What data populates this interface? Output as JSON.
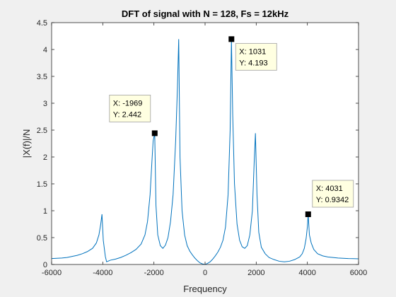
{
  "chart_data": {
    "type": "line",
    "title": "DFT of signal with N = 128, Fs = 12kHz",
    "xlabel": "Frequency",
    "ylabel": "|X(f)|/N",
    "xlim": [
      -6000,
      6000
    ],
    "ylim": [
      0,
      4.5
    ],
    "xticks": [
      -6000,
      -4000,
      -2000,
      0,
      2000,
      4000,
      6000
    ],
    "yticks": [
      0,
      0.5,
      1,
      1.5,
      2,
      2.5,
      3,
      3.5,
      4,
      4.5
    ],
    "xtick_labels": [
      "-6000",
      "-4000",
      "-2000",
      "0",
      "2000",
      "4000",
      "6000"
    ],
    "ytick_labels": [
      "0",
      "0.5",
      "1",
      "1.5",
      "2",
      "2.5",
      "3",
      "3.5",
      "4",
      "4.5"
    ],
    "grid": false,
    "line_color": "#0072bd",
    "series": [
      {
        "x": [
          -6000,
          -5800,
          -5600,
          -5400,
          -5200,
          -5000,
          -4800,
          -4600,
          -4400,
          -4250,
          -4150,
          -4080,
          -4031,
          -3980,
          -3900,
          -3850,
          -3700,
          -3500,
          -3300,
          -3100,
          -2900,
          -2700,
          -2500,
          -2350,
          -2250,
          -2150,
          -2080,
          -2030,
          -1969,
          -1920,
          -1850,
          -1750,
          -1650,
          -1550,
          -1450,
          -1350,
          -1250,
          -1150,
          -1080,
          -1031,
          -980,
          -900,
          -800,
          -700,
          -600,
          -500,
          -400,
          -300,
          -200,
          -100,
          0,
          100,
          200,
          300,
          400,
          500,
          600,
          700,
          800,
          900,
          980,
          1031,
          1080,
          1150,
          1250,
          1350,
          1450,
          1550,
          1650,
          1750,
          1850,
          1920,
          1969,
          2030,
          2100,
          2200,
          2350,
          2500,
          2700,
          2900,
          3100,
          3300,
          3500,
          3700,
          3800,
          3880,
          3950,
          4000,
          4031,
          4080,
          4150,
          4250,
          4400,
          4600,
          4800,
          5000,
          5200,
          5400,
          5600,
          5800,
          6000
        ],
        "y": [
          0.11,
          0.115,
          0.12,
          0.13,
          0.15,
          0.17,
          0.2,
          0.24,
          0.3,
          0.4,
          0.55,
          0.75,
          0.9342,
          0.45,
          0.15,
          0.05,
          0.08,
          0.1,
          0.13,
          0.17,
          0.22,
          0.28,
          0.38,
          0.55,
          0.8,
          1.3,
          1.9,
          2.3,
          2.442,
          1.1,
          0.55,
          0.35,
          0.3,
          0.36,
          0.5,
          0.8,
          1.3,
          2.3,
          3.3,
          4.193,
          2.0,
          1.0,
          0.55,
          0.35,
          0.25,
          0.18,
          0.12,
          0.07,
          0.03,
          0.01,
          0.0,
          0.02,
          0.05,
          0.1,
          0.16,
          0.23,
          0.32,
          0.45,
          0.7,
          1.3,
          2.5,
          4.193,
          2.8,
          1.5,
          0.75,
          0.45,
          0.33,
          0.3,
          0.35,
          0.55,
          1.0,
          1.9,
          2.442,
          1.3,
          0.6,
          0.32,
          0.2,
          0.13,
          0.09,
          0.06,
          0.05,
          0.06,
          0.09,
          0.14,
          0.2,
          0.3,
          0.48,
          0.7,
          0.9342,
          0.55,
          0.4,
          0.28,
          0.2,
          0.16,
          0.14,
          0.13,
          0.12,
          0.115,
          0.11,
          0.108,
          0.105
        ]
      }
    ],
    "annotations": [
      {
        "x": -1969,
        "y": 2.442,
        "line1": "X: -1969",
        "line2": "Y: 2.442"
      },
      {
        "x": 1031,
        "y": 4.193,
        "line1": "X: 1031",
        "line2": "Y: 4.193"
      },
      {
        "x": 4031,
        "y": 0.9342,
        "line1": "X: 4031",
        "line2": "Y: 0.9342"
      }
    ]
  }
}
